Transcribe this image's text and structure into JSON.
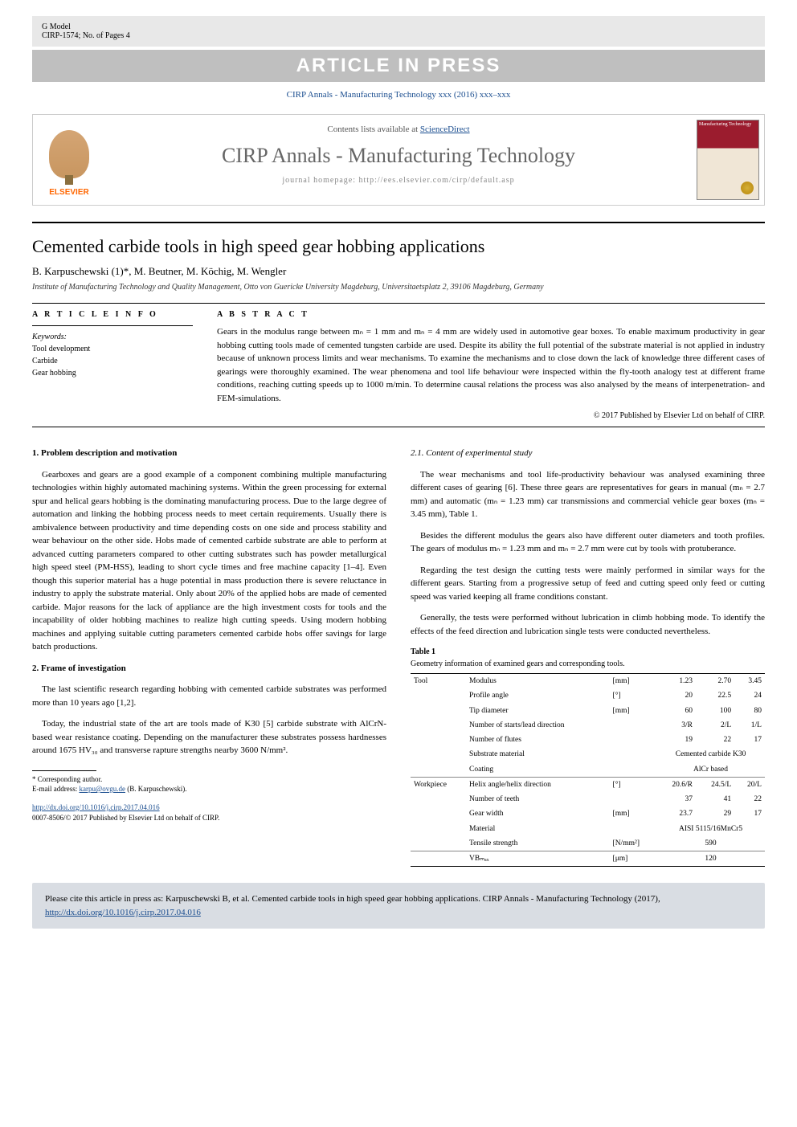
{
  "header": {
    "gmodel": "G Model",
    "docid": "CIRP-1574; No. of Pages 4",
    "press_banner": "ARTICLE IN PRESS",
    "journal_cite": "CIRP Annals - Manufacturing Technology xxx (2016) xxx–xxx",
    "contents_prefix": "Contents lists available at ",
    "contents_link": "ScienceDirect",
    "journal_name": "CIRP Annals - Manufacturing Technology",
    "journal_homepage": "journal homepage: http://ees.elsevier.com/cirp/default.asp",
    "elsevier": "ELSEVIER",
    "cover_text": "Manufacturing Technology"
  },
  "article": {
    "title": "Cemented carbide tools in high speed gear hobbing applications",
    "authors": "B. Karpuschewski  (1)*, M. Beutner, M. Köchig, M. Wengler",
    "affiliation": "Institute of Manufacturing Technology and Quality Management, Otto von Guericke University Magdeburg, Universitaetsplatz 2, 39106 Magdeburg, Germany",
    "info_hdr": "A R T I C L E  I N F O",
    "abstract_hdr": "A B S T R A C T",
    "keywords_label": "Keywords:",
    "keywords": [
      "Tool development",
      "Carbide",
      "Gear hobbing"
    ],
    "abstract": "Gears in the modulus range between mₙ = 1 mm and mₙ = 4 mm are widely used in automotive gear boxes. To enable maximum productivity in gear hobbing cutting tools made of cemented tungsten carbide are used. Despite its ability the full potential of the substrate material is not applied in industry because of unknown process limits and wear mechanisms. To examine the mechanisms and to close down the lack of knowledge three different cases of gearings were thoroughly examined. The wear phenomena and tool life behaviour were inspected within the fly-tooth analogy test at different frame conditions, reaching cutting speeds up to 1000 m/min. To determine causal relations the process was also analysed by the means of interpenetration- and FEM-simulations.",
    "copyright": "© 2017 Published by Elsevier Ltd on behalf of CIRP."
  },
  "body": {
    "sec1_heading": "1. Problem description and motivation",
    "sec1_p1": "Gearboxes and gears are a good example of a component combining multiple manufacturing technologies within highly automated machining systems. Within the green processing for external spur and helical gears hobbing is the dominating manufacturing process. Due to the large degree of automation and linking the hobbing process needs to meet certain requirements. Usually there is ambivalence between productivity and time depending costs on one side and process stability and wear behaviour on the other side. Hobs made of cemented carbide substrate are able to perform at advanced cutting parameters compared to other cutting substrates such has powder metallurgical high speed steel (PM-HSS), leading to short cycle times and free machine capacity [1–4]. Even though this superior material has a huge potential in mass production there is severe reluctance in industry to apply the substrate material. Only about 20% of the applied hobs are made of cemented carbide. Major reasons for the lack of appliance are the high investment costs for tools and the incapability of older hobbing machines to realize high cutting speeds. Using modern hobbing machines and applying suitable cutting parameters cemented carbide hobs offer savings for large batch productions.",
    "sec2_heading": "2. Frame of investigation",
    "sec2_p1": "The last scientific research regarding hobbing with cemented carbide substrates was performed more than 10 years ago [1,2].",
    "sec2_p2": "Today, the industrial state of the art are tools made of K30 [5] carbide substrate with AlCrN-based wear resistance coating. Depending on the manufacturer these substrates possess hardnesses around 1675 HV₃₀ and transverse rapture strengths nearby 3600 N/mm².",
    "sec21_heading": "2.1. Content of experimental study",
    "sec21_p1": "The wear mechanisms and tool life-productivity behaviour was analysed examining three different cases of gearing [6]. These three gears are representatives for gears in manual (mₙ = 2.7 mm) and automatic (mₙ = 1.23 mm) car transmissions and commercial vehicle gear boxes (mₙ = 3.45 mm), Table 1.",
    "sec21_p2": "Besides the different modulus the gears also have different outer diameters and tooth profiles. The gears of modulus mₙ = 1.23 mm and mₙ = 2.7 mm were cut by tools with protuberance.",
    "sec21_p3": "Regarding the test design the cutting tests were mainly performed in similar ways for the different gears. Starting from a progressive setup of feed and cutting speed only feed or cutting speed was varied keeping all frame conditions constant.",
    "sec21_p4": "Generally, the tests were performed without lubrication in climb hobbing mode. To identify the effects of the feed direction and lubrication single tests were conducted nevertheless."
  },
  "table1": {
    "label": "Table 1",
    "caption": "Geometry information of examined gears and corresponding tools.",
    "groups": [
      {
        "group": "Tool",
        "rows": [
          {
            "label": "Modulus",
            "unit": "[mm]",
            "v1": "1.23",
            "v2": "2.70",
            "v3": "3.45"
          },
          {
            "label": "Profile angle",
            "unit": "[°]",
            "v1": "20",
            "v2": "22.5",
            "v3": "24"
          },
          {
            "label": "Tip diameter",
            "unit": "[mm]",
            "v1": "60",
            "v2": "100",
            "v3": "80"
          },
          {
            "label": "Number of starts/lead direction",
            "unit": "",
            "v1": "3/R",
            "v2": "2/L",
            "v3": "1/L"
          },
          {
            "label": "Number of flutes",
            "unit": "",
            "v1": "19",
            "v2": "22",
            "v3": "17"
          },
          {
            "label": "Substrate material",
            "unit": "",
            "span": "Cemented carbide K30"
          },
          {
            "label": "Coating",
            "unit": "",
            "span": "AlCr based"
          }
        ]
      },
      {
        "group": "Workpiece",
        "rows": [
          {
            "label": "Helix angle/helix direction",
            "unit": "[°]",
            "v1": "20.6/R",
            "v2": "24.5/L",
            "v3": "20/L"
          },
          {
            "label": "Number of teeth",
            "unit": "",
            "v1": "37",
            "v2": "41",
            "v3": "22"
          },
          {
            "label": "Gear width",
            "unit": "[mm]",
            "v1": "23.7",
            "v2": "29",
            "v3": "17"
          },
          {
            "label": "Material",
            "unit": "",
            "span": "AISI 5115/16MnCr5"
          },
          {
            "label": "Tensile strength",
            "unit": "[N/mm²]",
            "span": "590"
          }
        ]
      },
      {
        "group": "",
        "rows": [
          {
            "label": "VBₘₐₓ",
            "unit": "[μm]",
            "span": "120"
          }
        ]
      }
    ]
  },
  "footnote": {
    "corr_label": "* Corresponding author.",
    "email_label": "E-mail address: ",
    "email": "karpu@ovgu.de",
    "email_name": " (B. Karpuschewski).",
    "doi": "http://dx.doi.org/10.1016/j.cirp.2017.04.016",
    "issn": "0007-8506/© 2017 Published by Elsevier Ltd on behalf of CIRP."
  },
  "citebox": {
    "text": "Please cite this article in press as: Karpuschewski B, et al. Cemented carbide tools in high speed gear hobbing applications. CIRP Annals - Manufacturing Technology (2017), ",
    "link": "http://dx.doi.org/10.1016/j.cirp.2017.04.016"
  },
  "colors": {
    "link": "#1a4d8f",
    "banner_bg": "#bfbfbf",
    "banner_text": "#ffffff",
    "citebox_bg": "#d9dde3",
    "elsevier": "#ff6600"
  }
}
